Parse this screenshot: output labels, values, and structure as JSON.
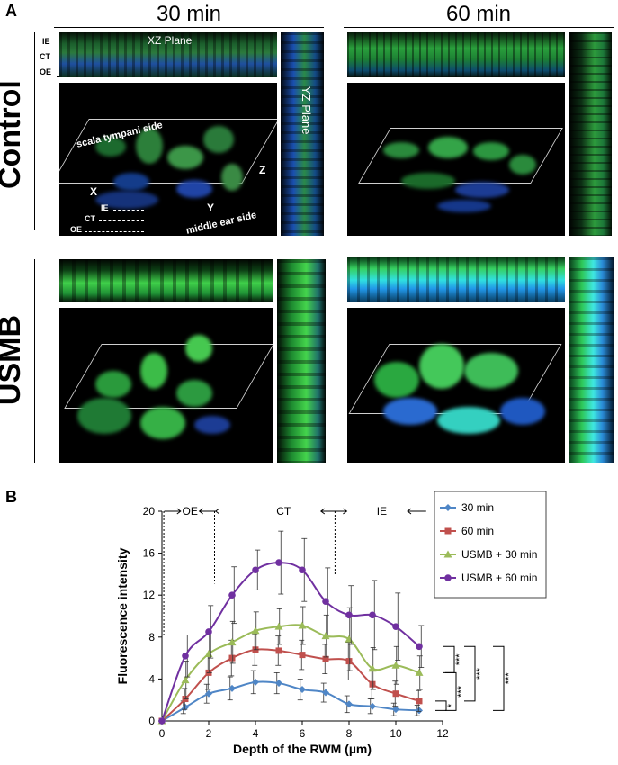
{
  "panel_a": {
    "letter": "A",
    "columns": [
      "30 min",
      "60 min"
    ],
    "rows": [
      "Control",
      "USMB"
    ],
    "layer_labels": [
      "IE",
      "CT",
      "OE"
    ],
    "xz_plane_label": "XZ Plane",
    "yz_plane_label": "YZ Plane",
    "scala_label": "scala tympani side",
    "middle_ear_label": "middle ear side",
    "axis_x": "X",
    "axis_y": "Y",
    "axis_z": "Z",
    "arrow_labels": [
      "IE",
      "CT",
      "OE"
    ]
  },
  "panel_b": {
    "letter": "B",
    "region_labels": [
      "OE",
      "CT",
      "IE"
    ],
    "significance": [
      "***",
      "***",
      "***",
      "***",
      "*"
    ]
  },
  "chart_data": {
    "type": "line",
    "title": "",
    "xlabel": "Depth of the RWM (µm)",
    "ylabel": "Fluorescence intensity",
    "xlim": [
      0,
      12
    ],
    "ylim": [
      0,
      20
    ],
    "xticks": [
      0,
      2,
      4,
      6,
      8,
      10,
      12
    ],
    "yticks": [
      0,
      4,
      8,
      12,
      16,
      20
    ],
    "x": [
      0,
      1,
      2,
      3,
      4,
      5,
      6,
      7,
      8,
      9,
      10,
      11
    ],
    "legend_position": "top-right",
    "series": [
      {
        "name": "30 min",
        "color": "#4f86c6",
        "marker": "diamond",
        "values": [
          0,
          1.3,
          2.6,
          3.1,
          3.7,
          3.6,
          3.0,
          2.7,
          1.6,
          1.4,
          1.1,
          1.0
        ],
        "errors": [
          0,
          0.6,
          0.9,
          1.1,
          1.1,
          1.0,
          1.0,
          0.9,
          0.8,
          0.7,
          0.6,
          0.5
        ]
      },
      {
        "name": "60 min",
        "color": "#c0504d",
        "marker": "square",
        "values": [
          0,
          2.1,
          4.6,
          6.0,
          6.8,
          6.7,
          6.3,
          5.9,
          5.7,
          3.5,
          2.6,
          1.9
        ],
        "errors": [
          0,
          1.0,
          1.6,
          1.7,
          1.5,
          1.4,
          1.4,
          1.4,
          1.8,
          1.4,
          1.2,
          1.0
        ]
      },
      {
        "name": "USMB + 30 min",
        "color": "#9bbb59",
        "marker": "triangle",
        "values": [
          0,
          3.9,
          6.4,
          7.5,
          8.6,
          9.0,
          9.1,
          8.1,
          7.8,
          5.0,
          5.3,
          4.6
        ],
        "errors": [
          0,
          1.8,
          1.8,
          2.0,
          1.8,
          1.7,
          1.8,
          2.0,
          3.0,
          2.0,
          1.8,
          1.6
        ]
      },
      {
        "name": "USMB + 60 min",
        "color": "#7030a0",
        "marker": "circle",
        "values": [
          0,
          6.2,
          8.5,
          12.0,
          14.4,
          15.1,
          14.4,
          11.4,
          10.1,
          10.1,
          9.0,
          7.1
        ],
        "errors": [
          0,
          2.0,
          2.5,
          2.7,
          1.9,
          3.0,
          3.0,
          3.2,
          2.8,
          3.3,
          3.2,
          2.0
        ]
      }
    ]
  }
}
